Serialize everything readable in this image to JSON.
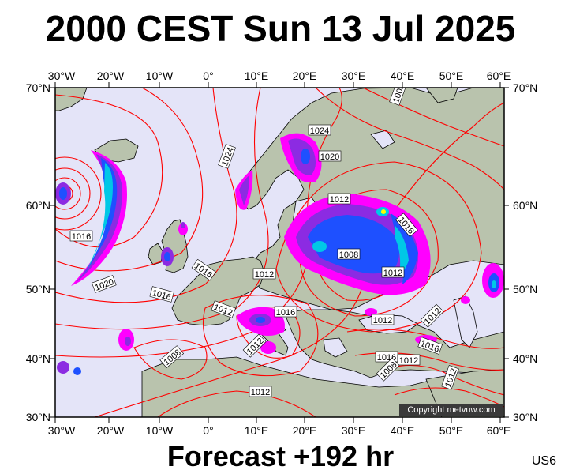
{
  "title": "2000 CEST Sun 13 Jul 2025",
  "forecast": "Forecast +192 hr",
  "model": "US6",
  "copyright": "Copyright metvuw.com",
  "longitude_ticks": [
    "30°W",
    "20°W",
    "10°W",
    "0°",
    "10°E",
    "20°E",
    "30°E",
    "40°E",
    "50°E",
    "60°E"
  ],
  "latitude_ticks": [
    "70°N",
    "60°N",
    "50°N",
    "40°N",
    "30°N"
  ],
  "isobar_labels": [
    "1024",
    "1024",
    "1020",
    "1012",
    "1016",
    "1012",
    "1008",
    "1012",
    "1016",
    "1016",
    "1020",
    "1016",
    "1012",
    "1016",
    "1012",
    "1012",
    "1008",
    "1016",
    "1016",
    "1012",
    "1012",
    "1008",
    "1012",
    "1008",
    "1012"
  ],
  "colors": {
    "ocean": "#e4e4f8",
    "land": "#b9c3ad",
    "isobar": "#ff0000",
    "coastline": "#000000",
    "precip_magenta": "#ff00ff",
    "precip_purple": "#8c2be2",
    "precip_blue": "#1e50ff",
    "precip_cyan": "#00c8e6",
    "precip_yellow": "#ffff00"
  }
}
